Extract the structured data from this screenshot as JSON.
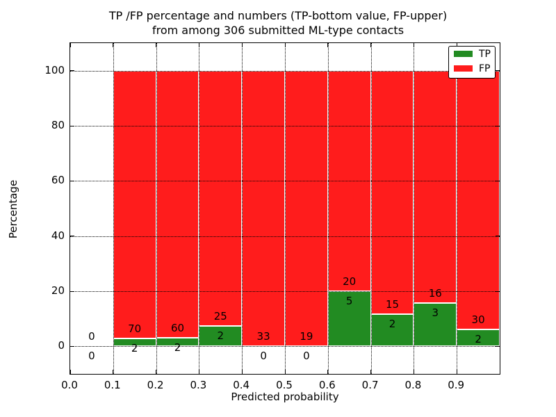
{
  "chart_data": {
    "type": "bar",
    "stacked": true,
    "title_line1": "TP /FP percentage and numbers (TP-bottom value, FP-upper)",
    "title_line2": "from among 306 submitted ML-type contacts",
    "xlabel": "Predicted probability",
    "ylabel": "Percentage",
    "total_contacts": 306,
    "xlim": [
      0.0,
      1.0
    ],
    "ylim": [
      -10,
      110
    ],
    "grid": "dotted-black-both-axes",
    "xticks": [
      {
        "value": 0.0,
        "label": "0.0"
      },
      {
        "value": 0.1,
        "label": "0.1"
      },
      {
        "value": 0.2,
        "label": "0.2"
      },
      {
        "value": 0.3,
        "label": "0.3"
      },
      {
        "value": 0.4,
        "label": "0.4"
      },
      {
        "value": 0.5,
        "label": "0.5"
      },
      {
        "value": 0.6,
        "label": "0.6"
      },
      {
        "value": 0.7,
        "label": "0.7"
      },
      {
        "value": 0.8,
        "label": "0.8"
      },
      {
        "value": 0.9,
        "label": "0.9"
      }
    ],
    "yticks": [
      {
        "value": 0,
        "label": "0"
      },
      {
        "value": 20,
        "label": "20"
      },
      {
        "value": 40,
        "label": "40"
      },
      {
        "value": 60,
        "label": "60"
      },
      {
        "value": 80,
        "label": "80"
      },
      {
        "value": 100,
        "label": "100"
      }
    ],
    "legend": {
      "position": "upper-right",
      "items": [
        {
          "label": "TP",
          "color": "#228b22"
        },
        {
          "label": "FP",
          "color": "#ff1c1c"
        }
      ]
    },
    "colors": {
      "tp": "#228b22",
      "fp": "#ff1c1c",
      "bar_edge": "#ffffff",
      "text": "#000000"
    },
    "bins": [
      {
        "x0": 0.0,
        "x1": 0.1,
        "tp_count": "0",
        "fp_count": "0",
        "tp_pct": 0,
        "fp_pct": 0,
        "bar": false
      },
      {
        "x0": 0.1,
        "x1": 0.2,
        "tp_count": "2",
        "fp_count": "70",
        "tp_pct": 2.7778,
        "fp_pct": 97.2222,
        "bar": true
      },
      {
        "x0": 0.2,
        "x1": 0.3,
        "tp_count": "2",
        "fp_count": "60",
        "tp_pct": 3.2258,
        "fp_pct": 96.7742,
        "bar": true
      },
      {
        "x0": 0.3,
        "x1": 0.4,
        "tp_count": "2",
        "fp_count": "25",
        "tp_pct": 7.4074,
        "fp_pct": 92.5926,
        "bar": true
      },
      {
        "x0": 0.4,
        "x1": 0.5,
        "tp_count": "0",
        "fp_count": "33",
        "tp_pct": 0,
        "fp_pct": 100,
        "bar": true
      },
      {
        "x0": 0.5,
        "x1": 0.6,
        "tp_count": "0",
        "fp_count": "19",
        "tp_pct": 0,
        "fp_pct": 100,
        "bar": true
      },
      {
        "x0": 0.6,
        "x1": 0.7,
        "tp_count": "5",
        "fp_count": "20",
        "tp_pct": 20.0,
        "fp_pct": 80.0,
        "bar": true
      },
      {
        "x0": 0.7,
        "x1": 0.8,
        "tp_count": "2",
        "fp_count": "15",
        "tp_pct": 11.7647,
        "fp_pct": 88.2353,
        "bar": true
      },
      {
        "x0": 0.8,
        "x1": 0.9,
        "tp_count": "3",
        "fp_count": "16",
        "tp_pct": 15.7895,
        "fp_pct": 84.2105,
        "bar": true
      },
      {
        "x0": 0.9,
        "x1": 1.0,
        "tp_count": "2",
        "fp_count": "30",
        "tp_pct": 6.25,
        "fp_pct": 93.75,
        "bar": true
      }
    ]
  }
}
